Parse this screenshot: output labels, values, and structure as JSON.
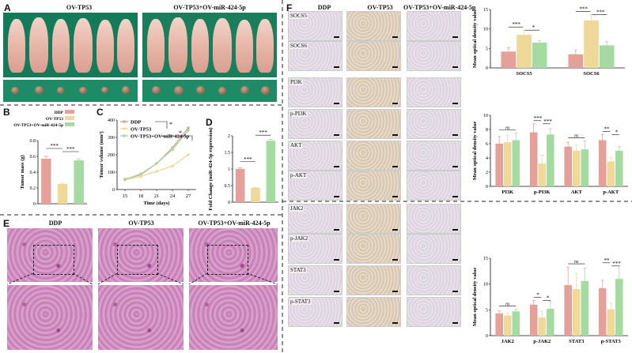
{
  "panels": {
    "A": "A",
    "B": "B",
    "C": "C",
    "D": "D",
    "E": "E",
    "F": "F"
  },
  "panelA": {
    "group1": "OV-TP53",
    "group2": "OV-TP53+OV-miR-424-5p"
  },
  "legend": {
    "items": [
      "DDP",
      "OV-TP53",
      "OV-TP53+OV-miR-424-5p"
    ]
  },
  "colors": {
    "DDP": "#e6a09a",
    "OV-TP53": "#eed99a",
    "OV-TP53+OV-miR-424-5p": "#a5dba0"
  },
  "panelE": {
    "cols": [
      "DDP",
      "OV-TP53",
      "OV-TP53+OV-miR-424-5p"
    ]
  },
  "panelF": {
    "cols": [
      "DDP",
      "OV-TP53",
      "OV-TP53+OV-miR-424-5p"
    ],
    "rows": [
      "SOCS5",
      "SOCS6",
      "PI3K",
      "p-PI3K",
      "AKT",
      "p-AKT",
      "JAK2",
      "p-JAK2",
      "STAT3",
      "p-STAT3"
    ]
  },
  "chart_data": [
    {
      "id": "B",
      "type": "bar",
      "categories": [
        "DDP",
        "OV-TP53",
        "OV-TP53+OV-miR-424-5p"
      ],
      "values": [
        0.57,
        0.25,
        0.55
      ],
      "errors": [
        0.03,
        0.01,
        0.02
      ],
      "ylabel": "Tumor mass (g)",
      "ylim": [
        0,
        0.8
      ],
      "yticks": [
        0.0,
        0.2,
        0.4,
        0.6,
        0.8
      ],
      "significance": [
        "***",
        "***"
      ]
    },
    {
      "id": "C",
      "type": "line",
      "x": [
        15,
        18,
        21,
        24,
        27
      ],
      "xlabel": "Time (days)",
      "ylabel": "Tumor volume (mm³)",
      "ylim": [
        0,
        400
      ],
      "yticks": [
        0,
        100,
        200,
        300,
        400
      ],
      "series": [
        {
          "name": "DDP",
          "values": [
            60,
            85,
            150,
            240,
            355
          ]
        },
        {
          "name": "OV-TP53",
          "values": [
            55,
            75,
            105,
            135,
            200
          ]
        },
        {
          "name": "OV-TP53+OV-miR-424-5p",
          "values": [
            58,
            90,
            150,
            230,
            340
          ]
        }
      ],
      "significance": [
        "*",
        "*"
      ]
    },
    {
      "id": "D",
      "type": "bar",
      "categories": [
        "DDP",
        "OV-TP53",
        "OV-TP53+OV-miR-424-5p"
      ],
      "values": [
        1.0,
        0.43,
        1.85
      ],
      "errors": [
        0.04,
        0.02,
        0.04
      ],
      "ylabel": "Fold Change (miR-424-5p expression)",
      "ylim": [
        0,
        2.0
      ],
      "yticks": [
        0.0,
        0.5,
        1.0,
        1.5,
        2.0
      ],
      "significance": [
        "***",
        "***"
      ]
    },
    {
      "id": "F1",
      "type": "bar",
      "categories": [
        "SOCS5",
        "SOCS6"
      ],
      "ylabel": "Mean optical density value",
      "ylim": [
        0,
        15
      ],
      "yticks": [
        0,
        5,
        10,
        15
      ],
      "series": [
        {
          "name": "DDP",
          "values": [
            4.2,
            3.5
          ],
          "errors": [
            1.0,
            1.0
          ]
        },
        {
          "name": "OV-TP53",
          "values": [
            8.5,
            12.2
          ],
          "errors": [
            1.2,
            1.5
          ]
        },
        {
          "name": "OV-TP53+OV-miR-424-5p",
          "values": [
            6.5,
            5.8
          ],
          "errors": [
            0.5,
            1.0
          ]
        }
      ],
      "significance": [
        [
          "***",
          "*"
        ],
        [
          "***",
          "***"
        ]
      ]
    },
    {
      "id": "F2",
      "type": "bar",
      "categories": [
        "PI3K",
        "p-PI3K",
        "AKT",
        "p-AKT"
      ],
      "ylabel": "Mean optical density value",
      "ylim": [
        0,
        10
      ],
      "yticks": [
        0,
        2,
        4,
        6,
        8,
        10
      ],
      "series": [
        {
          "name": "DDP",
          "values": [
            6.0,
            7.6,
            5.6,
            6.5
          ],
          "errors": [
            1.0,
            1.2,
            0.6,
            0.8
          ]
        },
        {
          "name": "OV-TP53",
          "values": [
            6.2,
            3.2,
            5.0,
            3.5
          ],
          "errors": [
            1.0,
            1.2,
            0.8,
            0.6
          ]
        },
        {
          "name": "OV-TP53+OV-miR-424-5p",
          "values": [
            6.5,
            7.3,
            5.2,
            5.0
          ],
          "errors": [
            1.0,
            0.8,
            1.2,
            0.6
          ]
        }
      ],
      "significance": [
        [
          "ns"
        ],
        [
          "***",
          "***"
        ],
        [
          "ns"
        ],
        [
          "**",
          "*"
        ]
      ]
    },
    {
      "id": "F3",
      "type": "bar",
      "categories": [
        "JAK2",
        "p-JAK2",
        "STAT3",
        "p-STAT3"
      ],
      "ylabel": "Mean optical density value",
      "ylim": [
        0,
        15
      ],
      "yticks": [
        0,
        5,
        10,
        15
      ],
      "series": [
        {
          "name": "DDP",
          "values": [
            4.3,
            6.0,
            9.8,
            9.2
          ],
          "errors": [
            0.5,
            0.8,
            3.5,
            1.5
          ]
        },
        {
          "name": "OV-TP53",
          "values": [
            3.9,
            3.5,
            9.0,
            5.1
          ],
          "errors": [
            0.5,
            1.2,
            3.0,
            1.2
          ]
        },
        {
          "name": "OV-TP53+OV-miR-424-5p",
          "values": [
            4.7,
            5.2,
            10.6,
            11.0
          ],
          "errors": [
            0.4,
            1.5,
            2.5,
            2.5
          ]
        }
      ],
      "significance": [
        [
          "ns"
        ],
        [
          "*",
          "*"
        ],
        [
          "ns"
        ],
        [
          "**",
          "***"
        ]
      ]
    }
  ]
}
